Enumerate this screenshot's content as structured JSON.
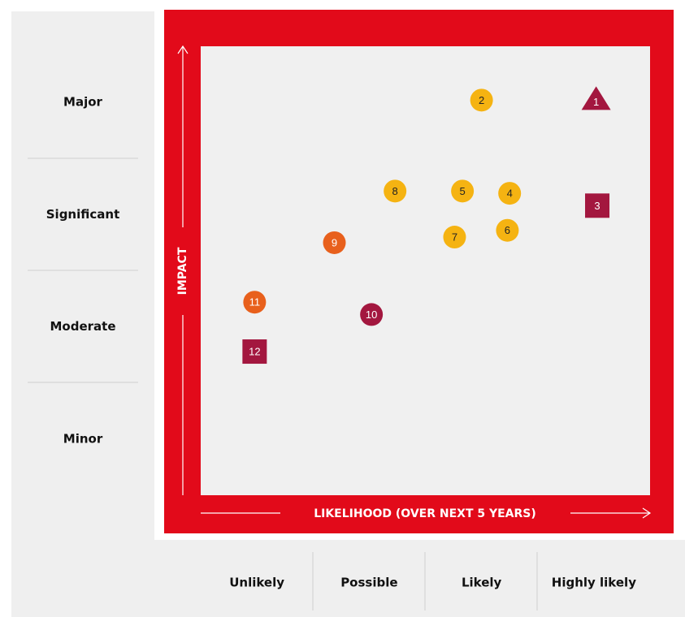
{
  "chart_data": {
    "type": "scatter",
    "x_label": "LIKELIHOOD (OVER NEXT 5 YEARS)",
    "y_label": "IMPACT",
    "x_categories": [
      "Unlikely",
      "Possible",
      "Likely",
      "Highly likely"
    ],
    "y_categories": [
      "Minor",
      "Moderate",
      "Significant",
      "Major"
    ],
    "xlim": [
      0,
      4
    ],
    "ylim": [
      0,
      4
    ],
    "points": [
      {
        "label": "1",
        "x": 3.52,
        "y": 3.52,
        "marker": "triangle",
        "color": "#a3173f"
      },
      {
        "label": "2",
        "x": 2.5,
        "y": 3.52,
        "marker": "circle",
        "color": "#f5b312"
      },
      {
        "label": "3",
        "x": 3.53,
        "y": 2.58,
        "marker": "square",
        "color": "#a3173f"
      },
      {
        "label": "4",
        "x": 2.75,
        "y": 2.69,
        "marker": "circle",
        "color": "#f5b312"
      },
      {
        "label": "5",
        "x": 2.33,
        "y": 2.71,
        "marker": "circle",
        "color": "#f5b312"
      },
      {
        "label": "6",
        "x": 2.73,
        "y": 2.36,
        "marker": "circle",
        "color": "#f5b312"
      },
      {
        "label": "7",
        "x": 2.26,
        "y": 2.3,
        "marker": "circle",
        "color": "#f5b312"
      },
      {
        "label": "8",
        "x": 1.73,
        "y": 2.71,
        "marker": "circle",
        "color": "#f5b312"
      },
      {
        "label": "9",
        "x": 1.19,
        "y": 2.25,
        "marker": "circle",
        "color": "#e8601c"
      },
      {
        "label": "10",
        "x": 1.52,
        "y": 1.61,
        "marker": "circle",
        "color": "#a3173f"
      },
      {
        "label": "11",
        "x": 0.48,
        "y": 1.72,
        "marker": "circle",
        "color": "#e8601c"
      },
      {
        "label": "12",
        "x": 0.48,
        "y": 1.28,
        "marker": "square",
        "color": "#a3173f"
      }
    ]
  }
}
